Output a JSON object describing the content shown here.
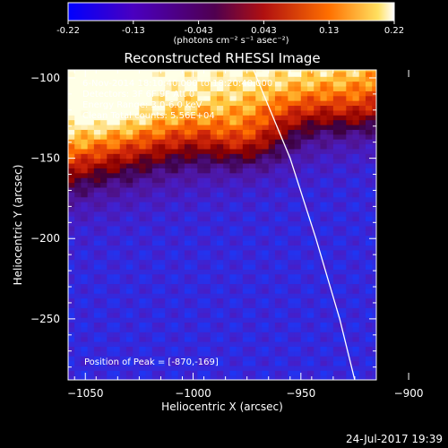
{
  "chart_data": {
    "type": "heatmap",
    "title": "Reconstructed RHESSI Image",
    "xlabel": "Heliocentric X (arcsec)",
    "ylabel": "Heliocentric Y (arcsec)",
    "xlim": [
      -1058,
      -915
    ],
    "ylim": [
      -288,
      -95
    ],
    "xticks": [
      -1050,
      -1000,
      -950,
      -900
    ],
    "yticks": [
      -100,
      -150,
      -200,
      -250
    ],
    "colorbar": {
      "label": "(photons cm⁻² s⁻¹ asec⁻²)",
      "min": -0.22,
      "max": 0.22,
      "ticks": [
        "-0.22",
        "-0.13",
        "-0.043",
        "0.043",
        "0.13",
        "0.22"
      ]
    },
    "annotations": [
      "6-Nov-2014 18:10:40.000 to 18:20:40.000",
      "Detectors: 3F 6F 9F  Att 0",
      "Energy Range: 3.0-6.0 keV",
      "Clean    Total counts: 5.56E+04"
    ],
    "peak_label": "Position of Peak = [-870,-169]",
    "peak": [
      -870,
      -169
    ],
    "limb": [
      [
        -972,
        -95
      ],
      [
        -955,
        -150
      ],
      [
        -943,
        -200
      ],
      [
        -932,
        -250
      ],
      [
        -925,
        -288
      ]
    ],
    "field": {
      "band_center_at_x_min": -160,
      "band_slope": 0.32,
      "band_width": 55,
      "hotspots": [
        {
          "x": -975,
          "y": -140,
          "amp": 0.09
        },
        {
          "x": -870,
          "y": -169,
          "amp": 0.11
        },
        {
          "x": -1040,
          "y": -110,
          "amp": 0.07
        },
        {
          "x": -920,
          "y": -120,
          "amp": 0.06
        }
      ]
    }
  },
  "footer": {
    "date": "24-Jul-2017 19:39"
  }
}
